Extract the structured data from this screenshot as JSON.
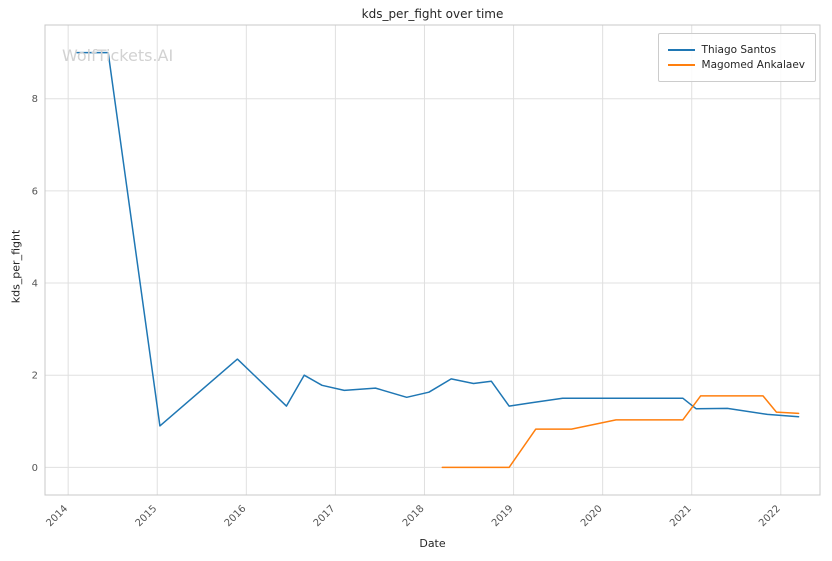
{
  "watermark": "WolfTickets.AI",
  "chart_data": {
    "type": "line",
    "title": "kds_per_fight over time",
    "xlabel": "Date",
    "ylabel": "kds_per_fight",
    "xlim": [
      2013.74,
      2022.44
    ],
    "ylim": [
      -0.6,
      9.6
    ],
    "x_ticks": [
      2014,
      2015,
      2016,
      2017,
      2018,
      2019,
      2020,
      2021,
      2022
    ],
    "y_ticks": [
      0,
      2,
      4,
      6,
      8
    ],
    "grid": true,
    "grid_color": "#e0e0e0",
    "spine_color": "#c8c8c8",
    "legend_position": "upper right",
    "series": [
      {
        "name": "Thiago Santos",
        "color": "#1f77b4",
        "x": [
          2014.1,
          2014.45,
          2015.03,
          2015.9,
          2016.45,
          2016.65,
          2016.85,
          2017.1,
          2017.45,
          2017.8,
          2018.05,
          2018.3,
          2018.55,
          2018.75,
          2018.95,
          2019.2,
          2019.55,
          2020.0,
          2020.9,
          2021.05,
          2021.4,
          2021.85,
          2022.2
        ],
        "y": [
          9.0,
          9.0,
          0.9,
          2.35,
          1.33,
          2.0,
          1.78,
          1.67,
          1.72,
          1.52,
          1.63,
          1.92,
          1.82,
          1.87,
          1.33,
          1.4,
          1.5,
          1.5,
          1.5,
          1.27,
          1.28,
          1.15,
          1.1
        ]
      },
      {
        "name": "Magomed Ankalaev",
        "color": "#ff7f0e",
        "x": [
          2018.2,
          2018.6,
          2018.95,
          2019.25,
          2019.65,
          2020.15,
          2020.9,
          2021.1,
          2021.45,
          2021.8,
          2021.95,
          2022.2
        ],
        "y": [
          0.0,
          0.0,
          0.0,
          0.83,
          0.83,
          1.03,
          1.03,
          1.55,
          1.55,
          1.55,
          1.2,
          1.17
        ]
      }
    ]
  }
}
